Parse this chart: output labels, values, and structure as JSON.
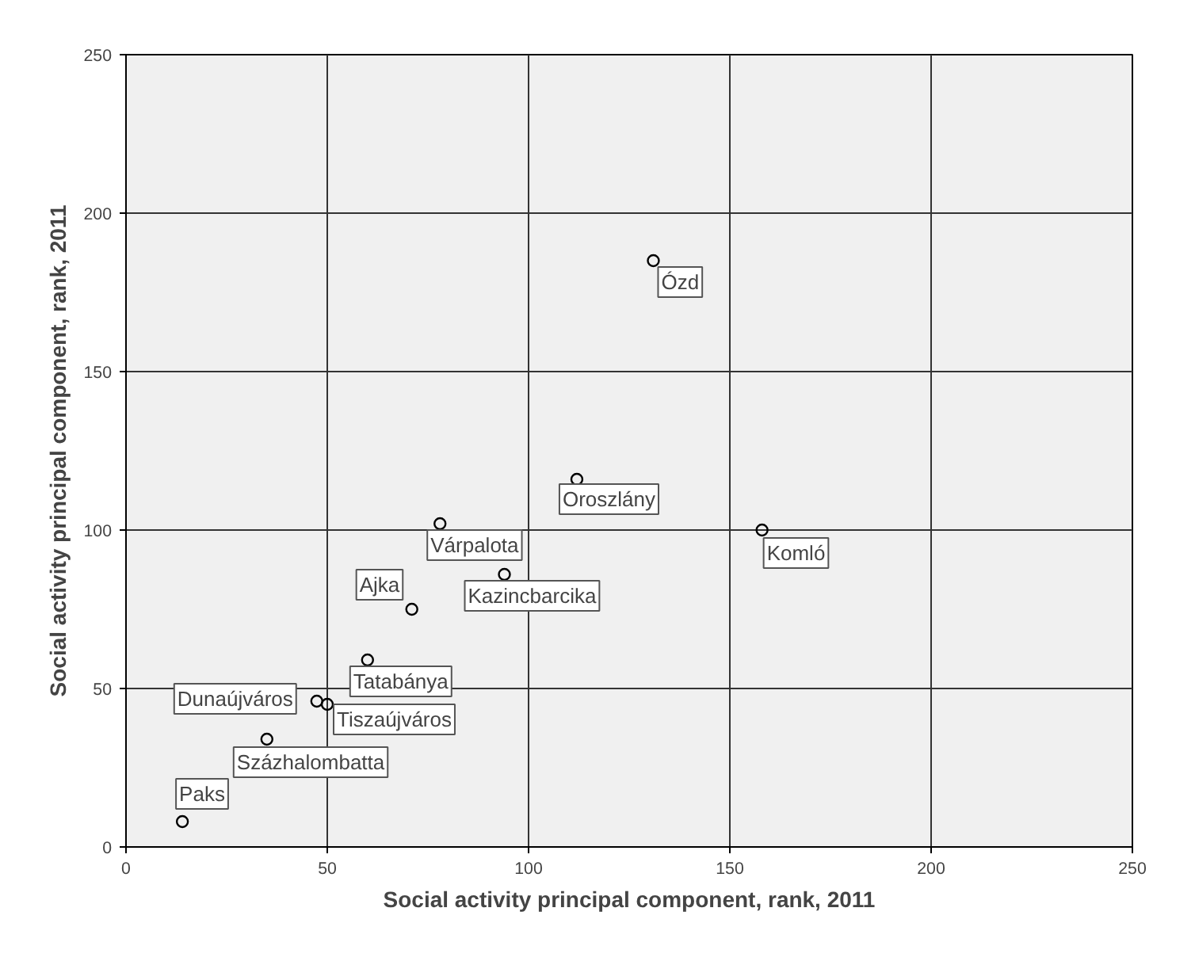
{
  "chart_data": {
    "type": "scatter",
    "xlabel": "Social activity principal component, rank, 2011",
    "ylabel": "Social activity principal component, rank, 2011",
    "x": [
      131,
      112,
      158,
      78,
      94,
      71,
      60,
      47.4,
      50,
      35,
      14
    ],
    "values": [
      185,
      116,
      100,
      102,
      86,
      75,
      59,
      46,
      45,
      34,
      8
    ],
    "color": "#000000",
    "marker": "circle",
    "annotations": [
      {
        "text": "Ózd",
        "x": 131,
        "y": 185
      },
      {
        "text": "Oroszlány",
        "x": 112,
        "y": 116
      },
      {
        "text": "Komló",
        "x": 158,
        "y": 100
      },
      {
        "text": "Várpalota",
        "x": 78,
        "y": 102
      },
      {
        "text": "Kazincbarcika",
        "x": 94,
        "y": 86
      },
      {
        "text": "Ajka",
        "x": 71,
        "y": 75
      },
      {
        "text": "Tatabánya",
        "x": 60,
        "y": 59
      },
      {
        "text": "Dunaújváros",
        "x": 47.4,
        "y": 46
      },
      {
        "text": "Tiszaújváros",
        "x": 50,
        "y": 45
      },
      {
        "text": "Százhalombatta",
        "x": 35,
        "y": 34
      },
      {
        "text": "Paks",
        "x": 14,
        "y": 8
      }
    ],
    "xlim": [
      0,
      250
    ],
    "ylim": [
      0,
      250
    ],
    "xticks": [
      0,
      50,
      100,
      150,
      200,
      250
    ],
    "yticks": [
      0,
      50,
      100,
      150,
      200,
      250
    ],
    "grid": true
  }
}
